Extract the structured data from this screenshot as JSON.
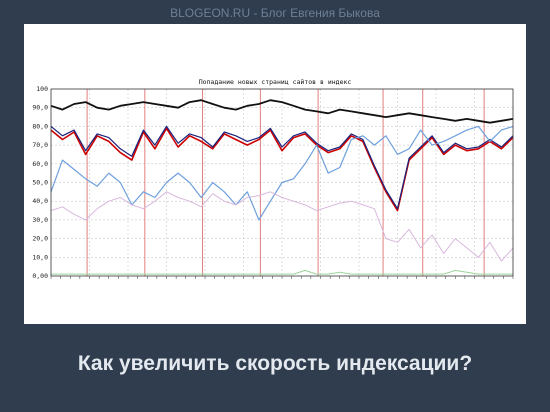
{
  "header": {
    "watermark": "BLOGEON.RU - Блог Евгения Быкова"
  },
  "caption": "Как увеличить скорость индексации?",
  "colors": {
    "background": "#2f3d4e",
    "black": "#111111",
    "red": "#cc0000",
    "navy": "#1a237e",
    "blue": "#6fa0dc",
    "pink": "#d8b8dc",
    "green": "#9ad49a",
    "vline": "#e07070",
    "grid": "#bbbbbb"
  },
  "chart_data": {
    "type": "line",
    "title": "Попадание новых страниц сайтов в индекс",
    "ylim": [
      0,
      100
    ],
    "y_ticks": [
      "0,00",
      "10,0",
      "20,0",
      "30,0",
      "40,0",
      "50,0",
      "60,0",
      "70,0",
      "80,0",
      "90,0",
      "100"
    ],
    "x": [
      0,
      5,
      10,
      15,
      20,
      25,
      30,
      35,
      40,
      45,
      50,
      55,
      60,
      65,
      70,
      75,
      80,
      85,
      90,
      95,
      100,
      105,
      110,
      115,
      120,
      125,
      130,
      135,
      140,
      145,
      150,
      155,
      160,
      165,
      170,
      175,
      180,
      185,
      190,
      195,
      200
    ],
    "xlim": [
      0,
      200
    ],
    "vertical_markers": [
      20,
      52,
      84,
      116,
      148,
      184,
      206,
      240
    ],
    "series": [
      {
        "color": "black",
        "values": [
          91,
          89,
          92,
          93,
          90,
          89,
          91,
          92,
          93,
          92,
          91,
          90,
          93,
          94,
          92,
          90,
          89,
          91,
          92,
          94,
          93,
          91,
          89,
          88,
          87,
          89,
          88,
          87,
          86,
          85,
          86,
          87,
          86,
          85,
          84,
          83,
          84,
          83,
          82,
          83,
          84
        ]
      },
      {
        "color": "red",
        "values": [
          78,
          73,
          77,
          65,
          75,
          72,
          66,
          62,
          77,
          68,
          79,
          69,
          75,
          72,
          68,
          76,
          73,
          70,
          73,
          78,
          67,
          74,
          76,
          70,
          66,
          68,
          75,
          72,
          58,
          45,
          35,
          62,
          68,
          74,
          65,
          70,
          67,
          68,
          72,
          68,
          74
        ]
      },
      {
        "color": "navy",
        "values": [
          80,
          75,
          78,
          67,
          76,
          74,
          68,
          64,
          78,
          70,
          80,
          71,
          76,
          74,
          69,
          77,
          75,
          72,
          74,
          79,
          69,
          75,
          77,
          71,
          67,
          69,
          76,
          73,
          59,
          46,
          36,
          63,
          69,
          75,
          66,
          71,
          68,
          69,
          73,
          69,
          75
        ]
      },
      {
        "color": "blue",
        "values": [
          45,
          62,
          57,
          52,
          48,
          55,
          50,
          38,
          45,
          42,
          50,
          55,
          50,
          42,
          50,
          45,
          38,
          45,
          30,
          40,
          50,
          52,
          60,
          70,
          55,
          58,
          73,
          75,
          70,
          75,
          65,
          68,
          78,
          70,
          72,
          75,
          78,
          80,
          72,
          78,
          80
        ]
      },
      {
        "color": "pink",
        "values": [
          35,
          37,
          33,
          30,
          36,
          40,
          42,
          38,
          36,
          40,
          45,
          42,
          40,
          37,
          44,
          40,
          38,
          42,
          43,
          45,
          42,
          40,
          38,
          35,
          37,
          39,
          40,
          38,
          36,
          20,
          18,
          25,
          15,
          22,
          12,
          20,
          15,
          10,
          18,
          8,
          15
        ]
      },
      {
        "color": "green",
        "values": [
          1,
          1,
          1,
          1,
          1,
          1,
          1,
          1,
          1,
          1,
          1,
          1,
          1,
          1,
          1,
          1,
          1,
          1,
          1,
          1,
          1,
          1,
          3,
          1,
          1,
          2,
          1,
          1,
          1,
          1,
          1,
          1,
          1,
          1,
          1,
          3,
          2,
          1,
          1,
          1,
          1
        ]
      }
    ]
  }
}
